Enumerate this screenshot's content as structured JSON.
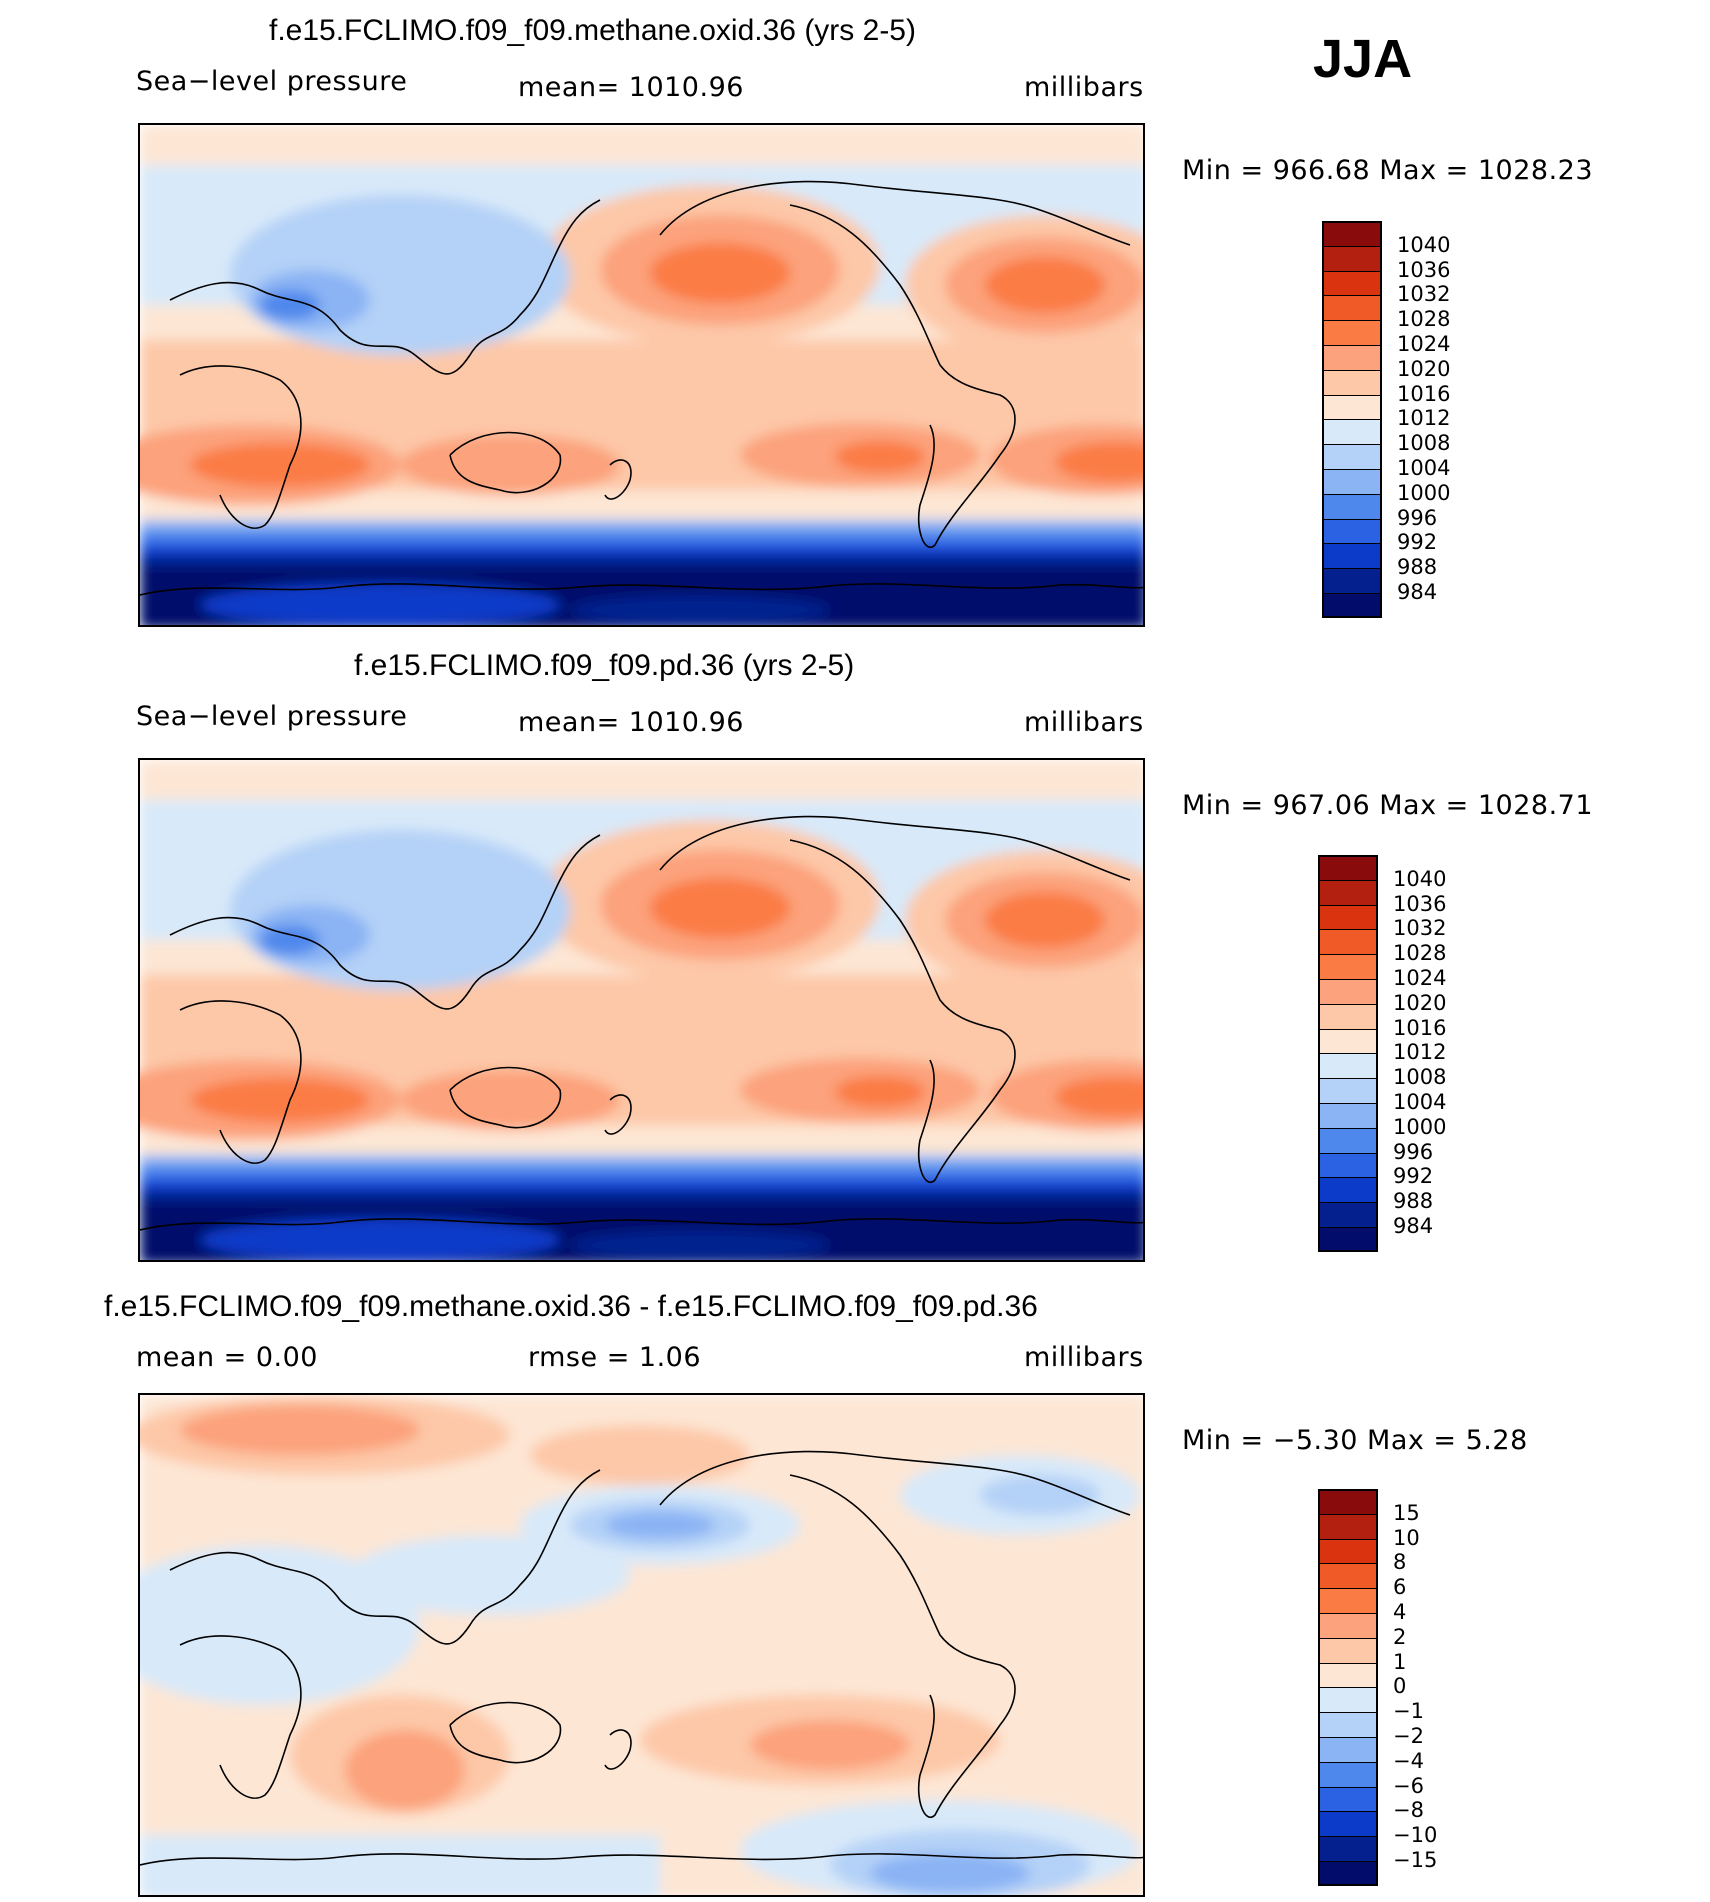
{
  "season": "JJA",
  "panels": [
    {
      "title": "f.e15.FCLIMO.f09_f09.methane.oxid.36 (yrs 2-5)",
      "left_label": "Sea−level pressure",
      "mid_label": "mean=  1010.96",
      "units": "millibars",
      "minmax": "Min  =  966.68  Max  =  1028.23"
    },
    {
      "title": "f.e15.FCLIMO.f09_f09.pd.36 (yrs 2-5)",
      "left_label": "Sea−level pressure",
      "mid_label": "mean=  1010.96",
      "units": "millibars",
      "minmax": "Min  =  967.06  Max  =  1028.71"
    },
    {
      "title": "f.e15.FCLIMO.f09_f09.methane.oxid.36 - f.e15.FCLIMO.f09_f09.pd.36",
      "left_label": "mean  =     0.00",
      "mid_label": "rmse  =     1.06",
      "units": "millibars",
      "minmax": "Min  =    −5.30  Max  =      5.28"
    }
  ],
  "chart_data": [
    {
      "type": "heatmap",
      "title": "f.e15.FCLIMO.f09_f09.methane.oxid.36 (yrs 2-5)",
      "variable": "Sea-level pressure",
      "units": "millibars",
      "mean": 1010.96,
      "min": 966.68,
      "max": 1028.23,
      "colorbar_levels": [
        "1040",
        "1036",
        "1032",
        "1028",
        "1024",
        "1020",
        "1016",
        "1012",
        "1008",
        "1004",
        "1000",
        "996",
        "992",
        "988",
        "984"
      ],
      "colorbar_colors": [
        "#8a0b0b",
        "#b3200f",
        "#d9340f",
        "#f05a26",
        "#fb7b44",
        "#fca27c",
        "#fdc8a8",
        "#fde6d4",
        "#d8e9f9",
        "#b4d1f7",
        "#8bb4f4",
        "#4f88ec",
        "#2a62e3",
        "#0d3bc9",
        "#04208f",
        "#020c6b"
      ]
    },
    {
      "type": "heatmap",
      "title": "f.e15.FCLIMO.f09_f09.pd.36 (yrs 2-5)",
      "variable": "Sea-level pressure",
      "units": "millibars",
      "mean": 1010.96,
      "min": 967.06,
      "max": 1028.71,
      "colorbar_levels": [
        "1040",
        "1036",
        "1032",
        "1028",
        "1024",
        "1020",
        "1016",
        "1012",
        "1008",
        "1004",
        "1000",
        "996",
        "992",
        "988",
        "984"
      ],
      "colorbar_colors": [
        "#8a0b0b",
        "#b3200f",
        "#d9340f",
        "#f05a26",
        "#fb7b44",
        "#fca27c",
        "#fdc8a8",
        "#fde6d4",
        "#d8e9f9",
        "#b4d1f7",
        "#8bb4f4",
        "#4f88ec",
        "#2a62e3",
        "#0d3bc9",
        "#04208f",
        "#020c6b"
      ]
    },
    {
      "type": "heatmap",
      "title": "f.e15.FCLIMO.f09_f09.methane.oxid.36 - f.e15.FCLIMO.f09_f09.pd.36",
      "units": "millibars",
      "mean": 0.0,
      "rmse": 1.06,
      "min": -5.3,
      "max": 5.28,
      "colorbar_levels": [
        "15",
        "10",
        "8",
        "6",
        "4",
        "2",
        "1",
        "0",
        "−1",
        "−2",
        "−4",
        "−6",
        "−8",
        "−10",
        "−15"
      ],
      "colorbar_colors": [
        "#8a0b0b",
        "#b3200f",
        "#d9340f",
        "#f05a26",
        "#fb7b44",
        "#fca27c",
        "#fdc8a8",
        "#fde6d4",
        "#d8e9f9",
        "#b4d1f7",
        "#8bb4f4",
        "#4f88ec",
        "#2a62e3",
        "#0d3bc9",
        "#04208f",
        "#020c6b"
      ]
    }
  ]
}
